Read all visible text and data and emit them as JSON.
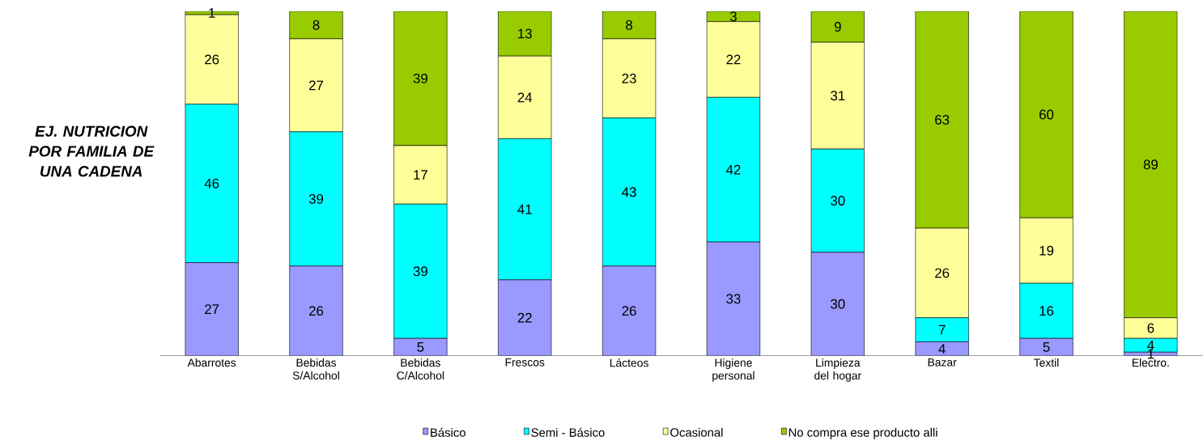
{
  "chart_data": {
    "type": "bar",
    "stacked": true,
    "title": "EJ. NUTRICION POR FAMILIA DE UNA CADENA",
    "categories": [
      "Abarrotes",
      "Bebidas S/Alcohol",
      "Bebidas C/Alcohol",
      "Frescos",
      "Lácteos",
      "Higiene personal",
      "Limpieza del hogar",
      "Bazar",
      "Textil",
      "Electro."
    ],
    "series": [
      {
        "name": "Básico",
        "color": "#9999ff",
        "values": [
          27,
          26,
          5,
          22,
          26,
          33,
          30,
          4,
          5,
          1
        ]
      },
      {
        "name": "Semi - Básico",
        "color": "#00ffff",
        "values": [
          46,
          39,
          39,
          41,
          43,
          42,
          30,
          7,
          16,
          4
        ]
      },
      {
        "name": "Ocasional",
        "color": "#ffff99",
        "values": [
          26,
          27,
          17,
          24,
          23,
          22,
          31,
          26,
          19,
          6
        ]
      },
      {
        "name": "No compra ese producto alli",
        "color": "#99cc00",
        "values": [
          1,
          8,
          39,
          13,
          8,
          3,
          9,
          63,
          60,
          89
        ]
      }
    ],
    "data_labels": true,
    "legend": "bottom"
  }
}
